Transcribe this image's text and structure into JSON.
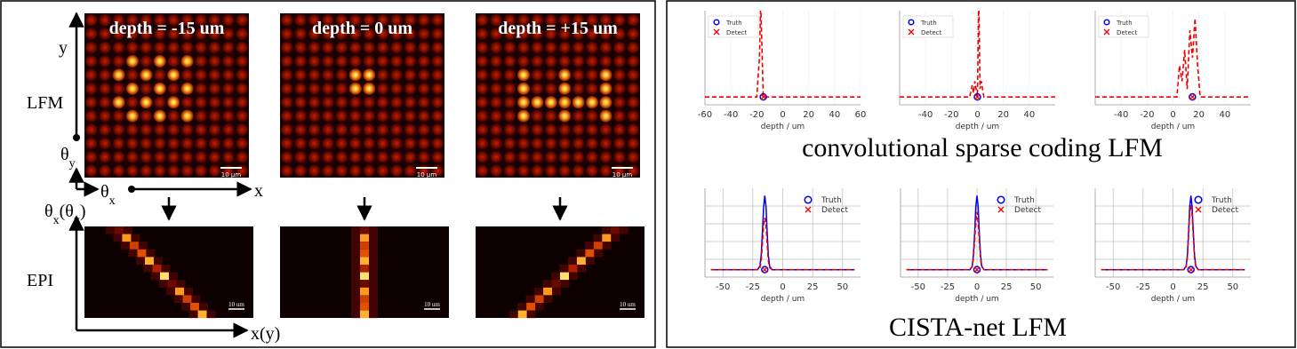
{
  "left_panel": {
    "depth_titles": [
      "depth = -15 um",
      "depth = 0 um",
      "depth = +15 um"
    ],
    "row_labels": [
      "LFM",
      "EPI"
    ],
    "axis_y": "y",
    "axis_theta_y": [
      {
        "text": "θ"
      },
      {
        "text": "y",
        "sub": true
      }
    ],
    "axis_theta_x": [
      {
        "text": "θ"
      },
      {
        "text": "x",
        "sub": true
      }
    ],
    "axis_x": "x",
    "epi_vertical": [
      {
        "text": "θ"
      },
      {
        "text": "x",
        "sub": true
      },
      {
        "text": "(θ"
      },
      {
        "text": "y",
        "sub": true
      },
      {
        "text": ")"
      }
    ],
    "epi_horizontal": "x(y)",
    "scale_bar_label": "10 μm",
    "epi_scale_bar_label": "10 um"
  },
  "right_panel": {
    "group_titles": [
      "convolutional sparse coding LFM",
      "CISTA-net LFM"
    ],
    "plots": [
      {
        "xlim": [
          -60,
          60
        ],
        "ylim": [
          -0.1,
          1.1
        ],
        "xticks": [
          -60,
          -40,
          -20,
          0,
          20,
          40,
          60
        ],
        "xlabel": "depth / um",
        "legend": [
          "Truth",
          "Detect"
        ],
        "legend_loc": "upper left",
        "truth_point": {
          "x": -15,
          "y": 0,
          "color": "#0000ee"
        },
        "detect_curve": {
          "x": [
            -60,
            -20,
            -18,
            -17,
            -16,
            -15,
            -14,
            60
          ],
          "y": [
            0,
            0,
            0.5,
            1.2,
            0.6,
            0,
            0,
            0
          ],
          "color": "#ee0000",
          "dashed": true
        }
      },
      {
        "xlim": [
          -60,
          60
        ],
        "ylim": [
          -0.1,
          1.1
        ],
        "xticks": [
          -40,
          -20,
          0,
          20,
          40
        ],
        "xlabel": "depth / um",
        "legend": [
          "Truth",
          "Detect"
        ],
        "legend_loc": "upper left",
        "truth_point": {
          "x": 0,
          "y": 0,
          "color": "#0000ee"
        },
        "detect_curve": {
          "x": [
            -60,
            -6,
            -4,
            -3,
            -2,
            0,
            1,
            2,
            3,
            4,
            5,
            60
          ],
          "y": [
            0,
            0,
            0.15,
            0.05,
            0.2,
            0,
            1.3,
            0.1,
            0.2,
            0.1,
            0,
            0
          ],
          "color": "#ee0000",
          "dashed": true
        }
      },
      {
        "xlim": [
          -60,
          60
        ],
        "ylim": [
          -0.1,
          1.1
        ],
        "xticks": [
          -40,
          -20,
          0,
          20,
          40
        ],
        "xlabel": "depth / um",
        "legend": [
          "Truth",
          "Detect"
        ],
        "legend_loc": "upper left",
        "truth_point": {
          "x": 15,
          "y": 0,
          "color": "#0000ee"
        },
        "detect_curve": {
          "x": [
            -60,
            3,
            5,
            7,
            9,
            11,
            13,
            15,
            17,
            19,
            21,
            60
          ],
          "y": [
            0,
            0,
            0.4,
            0.2,
            0.6,
            0.1,
            0.85,
            0.5,
            1.0,
            0.4,
            0,
            0
          ],
          "color": "#ee0000",
          "dashed": true
        }
      },
      {
        "xlim": [
          -65,
          65
        ],
        "ylim": [
          -0.1,
          1.1
        ],
        "xticks": [
          -50,
          -25,
          0,
          25,
          50
        ],
        "xlabel": "depth / um",
        "legend": [
          "Truth",
          "Detect"
        ],
        "legend_loc": "upper right",
        "grid": true,
        "truth_point": {
          "x": -15,
          "y": 0,
          "color": "#0000ee"
        },
        "truth_curve": {
          "x": [
            -60,
            -21,
            -19,
            -18,
            -17,
            -16,
            -15,
            -14,
            -13,
            -12,
            -11,
            -9,
            60
          ],
          "y": [
            0,
            0,
            0.05,
            0.2,
            0.5,
            0.85,
            1.0,
            0.85,
            0.5,
            0.2,
            0.05,
            0,
            0
          ],
          "color": "#0000ee"
        },
        "detect_curve": {
          "x": [
            -60,
            -21,
            -19,
            -18,
            -17,
            -16,
            -15,
            -14,
            -13,
            -12,
            -11,
            -9,
            60
          ],
          "y": [
            0,
            0,
            0.03,
            0.12,
            0.35,
            0.6,
            0.7,
            0.6,
            0.35,
            0.12,
            0.03,
            0,
            0
          ],
          "color": "#ee0000",
          "dashed": true
        }
      },
      {
        "xlim": [
          -65,
          65
        ],
        "ylim": [
          -0.1,
          1.1
        ],
        "xticks": [
          -50,
          -25,
          0,
          25,
          50
        ],
        "xlabel": "depth / um",
        "legend": [
          "Truth",
          "Detect"
        ],
        "legend_loc": "upper right",
        "grid": true,
        "truth_point": {
          "x": 0,
          "y": 0,
          "color": "#0000ee"
        },
        "truth_curve": {
          "x": [
            -60,
            -6,
            -4,
            -3,
            -2,
            -1,
            0,
            1,
            2,
            3,
            4,
            6,
            60
          ],
          "y": [
            0,
            0,
            0.05,
            0.2,
            0.5,
            0.85,
            1.0,
            0.85,
            0.5,
            0.2,
            0.05,
            0,
            0
          ],
          "color": "#0000ee"
        },
        "detect_curve": {
          "x": [
            -60,
            -6,
            -4,
            -3,
            -2,
            -1,
            0,
            1,
            2,
            3,
            4,
            6,
            60
          ],
          "y": [
            0,
            0,
            0.04,
            0.15,
            0.4,
            0.65,
            0.78,
            0.65,
            0.4,
            0.15,
            0.04,
            0,
            0
          ],
          "color": "#ee0000",
          "dashed": true
        }
      },
      {
        "xlim": [
          -65,
          65
        ],
        "ylim": [
          -0.1,
          1.1
        ],
        "xticks": [
          -50,
          -25,
          0,
          25,
          50
        ],
        "xlabel": "depth / um",
        "legend": [
          "Truth",
          "Detect"
        ],
        "legend_loc": "upper right",
        "grid": true,
        "truth_point": {
          "x": 15,
          "y": 0,
          "color": "#0000ee"
        },
        "truth_curve": {
          "x": [
            -60,
            9,
            11,
            12,
            13,
            14,
            15,
            16,
            17,
            18,
            19,
            21,
            60
          ],
          "y": [
            0,
            0,
            0.05,
            0.2,
            0.5,
            0.85,
            1.0,
            0.85,
            0.5,
            0.2,
            0.05,
            0,
            0
          ],
          "color": "#0000ee"
        },
        "detect_curve": {
          "x": [
            -60,
            9,
            11,
            12,
            13,
            14,
            15,
            16,
            17,
            18,
            19,
            21,
            60
          ],
          "y": [
            0,
            0,
            0.04,
            0.16,
            0.45,
            0.75,
            0.88,
            0.75,
            0.45,
            0.16,
            0.04,
            0,
            0
          ],
          "color": "#ee0000",
          "dashed": true
        }
      }
    ]
  }
}
